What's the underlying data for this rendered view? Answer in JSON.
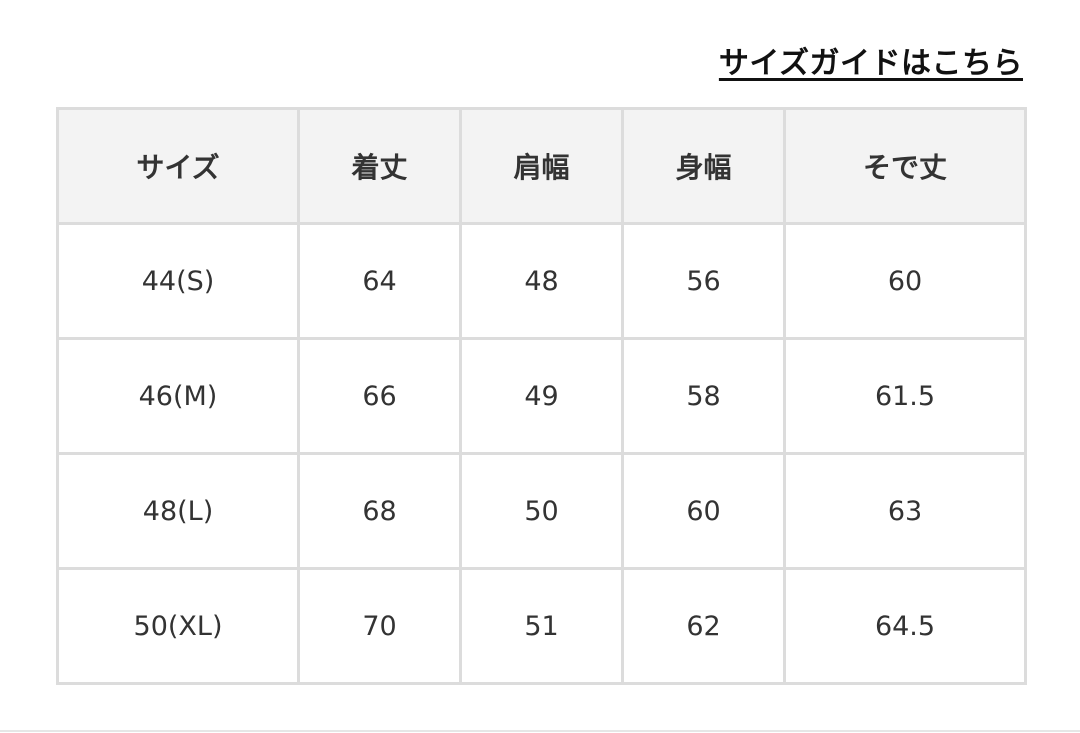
{
  "size_guide_link": "サイズガイドはこちら",
  "table": {
    "headers": [
      "サイズ",
      "着丈",
      "肩幅",
      "身幅",
      "そで丈"
    ],
    "rows": [
      [
        "44(S)",
        "64",
        "48",
        "56",
        "60"
      ],
      [
        "46(M)",
        "66",
        "49",
        "58",
        "61.5"
      ],
      [
        "48(L)",
        "68",
        "50",
        "60",
        "63"
      ],
      [
        "50(XL)",
        "70",
        "51",
        "62",
        "64.5"
      ]
    ]
  }
}
